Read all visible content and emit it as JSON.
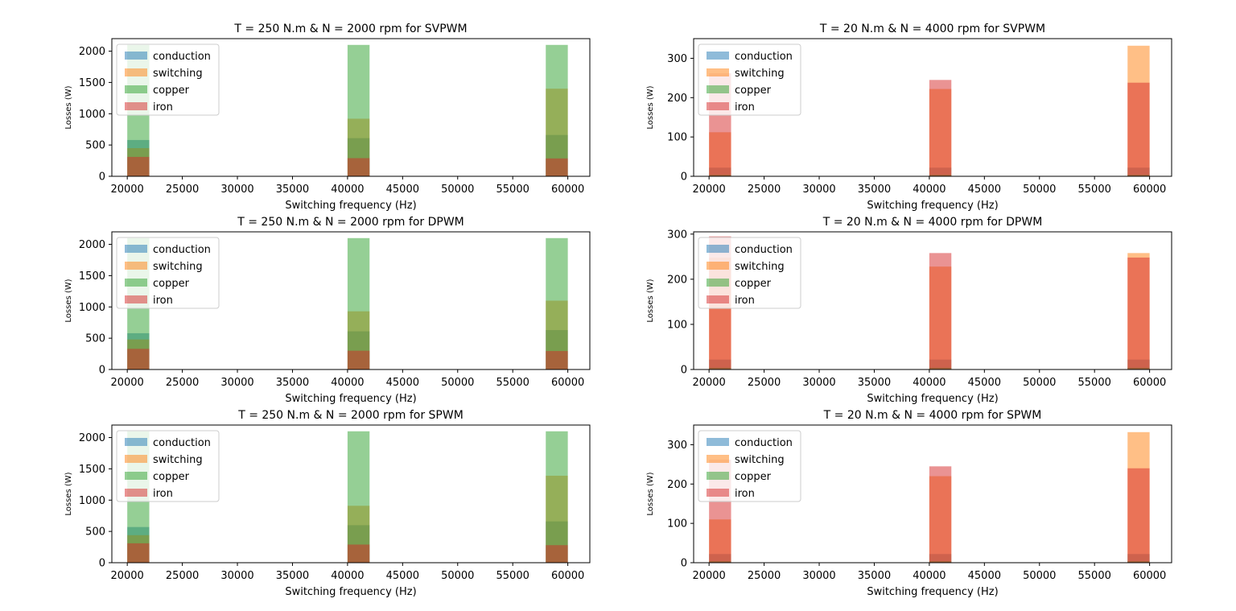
{
  "colors": {
    "conduction": "#1f77b4",
    "switching": "#ff7f0e",
    "copper": "#2ca02c",
    "iron": "#d62728"
  },
  "chart_data": [
    {
      "type": "bar",
      "title": "T = 250 N.m & N = 2000 rpm for SVPWM",
      "xlabel": "Switching frequency (Hz)",
      "ylabel": "Losses (W)",
      "xlim": [
        18600,
        62000
      ],
      "ylim": [
        0,
        2200
      ],
      "xticks": [
        20000,
        25000,
        30000,
        35000,
        40000,
        45000,
        50000,
        55000,
        60000
      ],
      "yticks": [
        0,
        500,
        1000,
        1500,
        2000
      ],
      "bins": [
        [
          20000,
          22000
        ],
        [
          40000,
          42000
        ],
        [
          58000,
          60000
        ]
      ],
      "legend": "upper-left",
      "series": [
        {
          "name": "conduction",
          "values": [
            580,
            610,
            660
          ]
        },
        {
          "name": "switching",
          "values": [
            450,
            920,
            1400
          ]
        },
        {
          "name": "copper",
          "values": [
            2100,
            2100,
            2100
          ]
        },
        {
          "name": "iron",
          "values": [
            310,
            290,
            285
          ]
        }
      ]
    },
    {
      "type": "bar",
      "title": "T = 20 N.m & N = 4000 rpm for SVPWM",
      "xlabel": "Switching frequency (Hz)",
      "ylabel": "Losses (W)",
      "xlim": [
        18600,
        62000
      ],
      "ylim": [
        0,
        350
      ],
      "xticks": [
        20000,
        25000,
        30000,
        35000,
        40000,
        45000,
        50000,
        55000,
        60000
      ],
      "yticks": [
        0,
        100,
        200,
        300
      ],
      "bins": [
        [
          20000,
          22000
        ],
        [
          40000,
          42000
        ],
        [
          58000,
          60000
        ]
      ],
      "legend": "upper-left",
      "series": [
        {
          "name": "conduction",
          "values": [
            22,
            22,
            22
          ]
        },
        {
          "name": "switching",
          "values": [
            112,
            222,
            332
          ]
        },
        {
          "name": "copper",
          "values": [
            4,
            4,
            4
          ]
        },
        {
          "name": "iron",
          "values": [
            262,
            245,
            238
          ]
        }
      ]
    },
    {
      "type": "bar",
      "title": "T = 250 N.m & N = 2000 rpm for DPWM",
      "xlabel": "Switching frequency (Hz)",
      "ylabel": "Losses (W)",
      "xlim": [
        18600,
        62000
      ],
      "ylim": [
        0,
        2200
      ],
      "xticks": [
        20000,
        25000,
        30000,
        35000,
        40000,
        45000,
        50000,
        55000,
        60000
      ],
      "yticks": [
        0,
        500,
        1000,
        1500,
        2000
      ],
      "bins": [
        [
          20000,
          22000
        ],
        [
          40000,
          42000
        ],
        [
          58000,
          60000
        ]
      ],
      "legend": "upper-left",
      "series": [
        {
          "name": "conduction",
          "values": [
            580,
            610,
            630
          ]
        },
        {
          "name": "switching",
          "values": [
            480,
            930,
            1100
          ]
        },
        {
          "name": "copper",
          "values": [
            2100,
            2100,
            2100
          ]
        },
        {
          "name": "iron",
          "values": [
            330,
            300,
            295
          ]
        }
      ]
    },
    {
      "type": "bar",
      "title": "T = 20 N.m & N = 4000 rpm for DPWM",
      "xlabel": "Switching frequency (Hz)",
      "ylabel": "Losses (W)",
      "xlim": [
        18600,
        62000
      ],
      "ylim": [
        0,
        305
      ],
      "xticks": [
        20000,
        25000,
        30000,
        35000,
        40000,
        45000,
        50000,
        55000,
        60000
      ],
      "yticks": [
        0,
        100,
        200,
        300
      ],
      "bins": [
        [
          20000,
          22000
        ],
        [
          40000,
          42000
        ],
        [
          58000,
          60000
        ]
      ],
      "legend": "upper-left",
      "series": [
        {
          "name": "conduction",
          "values": [
            22,
            22,
            22
          ]
        },
        {
          "name": "switching",
          "values": [
            248,
            228,
            258
          ]
        },
        {
          "name": "copper",
          "values": [
            4,
            4,
            4
          ]
        },
        {
          "name": "iron",
          "values": [
            295,
            258,
            248
          ]
        }
      ]
    },
    {
      "type": "bar",
      "title": "T = 250 N.m & N = 2000 rpm for SPWM",
      "xlabel": "Switching frequency (Hz)",
      "ylabel": "Losses (W)",
      "xlim": [
        18600,
        62000
      ],
      "ylim": [
        0,
        2200
      ],
      "xticks": [
        20000,
        25000,
        30000,
        35000,
        40000,
        45000,
        50000,
        55000,
        60000
      ],
      "yticks": [
        0,
        500,
        1000,
        1500,
        2000
      ],
      "bins": [
        [
          20000,
          22000
        ],
        [
          40000,
          42000
        ],
        [
          58000,
          60000
        ]
      ],
      "legend": "upper-left",
      "series": [
        {
          "name": "conduction",
          "values": [
            570,
            600,
            660
          ]
        },
        {
          "name": "switching",
          "values": [
            440,
            910,
            1390
          ]
        },
        {
          "name": "copper",
          "values": [
            2100,
            2100,
            2100
          ]
        },
        {
          "name": "iron",
          "values": [
            310,
            290,
            280
          ]
        }
      ]
    },
    {
      "type": "bar",
      "title": "T = 20 N.m & N = 4000 rpm for SPWM",
      "xlabel": "Switching frequency (Hz)",
      "ylabel": "Losses (W)",
      "xlim": [
        18600,
        62000
      ],
      "ylim": [
        0,
        350
      ],
      "xticks": [
        20000,
        25000,
        30000,
        35000,
        40000,
        45000,
        50000,
        55000,
        60000
      ],
      "yticks": [
        0,
        100,
        200,
        300
      ],
      "bins": [
        [
          20000,
          22000
        ],
        [
          40000,
          42000
        ],
        [
          58000,
          60000
        ]
      ],
      "legend": "upper-left",
      "series": [
        {
          "name": "conduction",
          "values": [
            22,
            22,
            22
          ]
        },
        {
          "name": "switching",
          "values": [
            110,
            220,
            332
          ]
        },
        {
          "name": "copper",
          "values": [
            4,
            4,
            4
          ]
        },
        {
          "name": "iron",
          "values": [
            262,
            245,
            240
          ]
        }
      ]
    }
  ]
}
